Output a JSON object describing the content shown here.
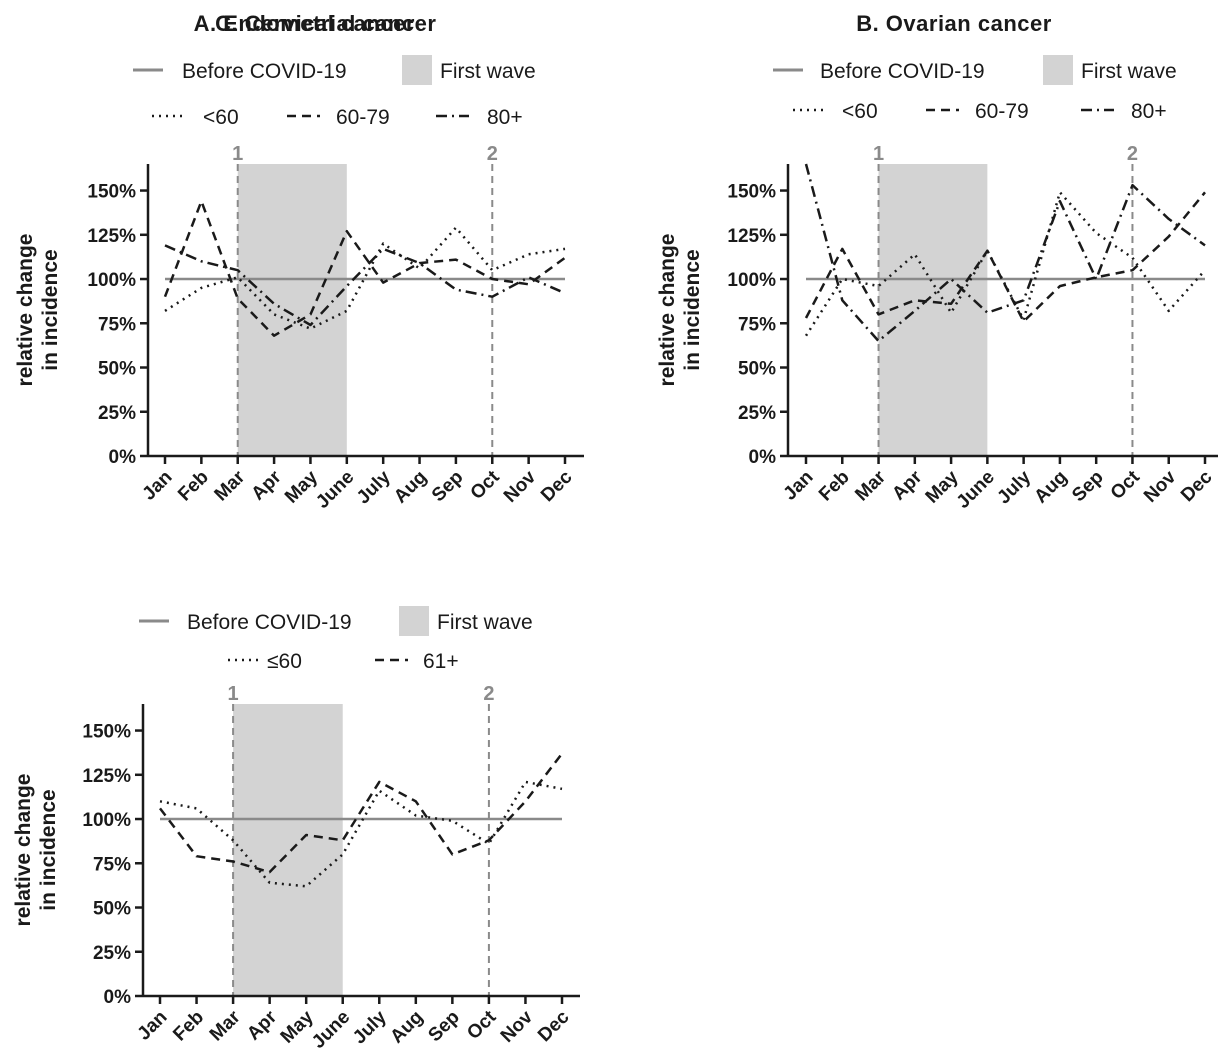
{
  "colors": {
    "axis": "#1a1a1a",
    "line": "#1a1a1a",
    "reference": "#8a8a8a",
    "shade": "#d3d3d3",
    "marker": "#8a8a8a"
  },
  "chart_data": [
    {
      "type": "line",
      "title": "A. Endometrial cancer",
      "ylabel": [
        "relative change",
        "in incidence"
      ],
      "categories": [
        "Jan",
        "Feb",
        "Mar",
        "Apr",
        "May",
        "June",
        "July",
        "Aug",
        "Sep",
        "Oct",
        "Nov",
        "Dec"
      ],
      "y_ticks": [
        "0%",
        "25%",
        "50%",
        "75%",
        "100%",
        "125%",
        "150%"
      ],
      "ylim": [
        0,
        165
      ],
      "reference": {
        "name": "Before COVID-19",
        "value": 100
      },
      "shaded": {
        "name": "First wave",
        "from": "Mar",
        "to": "June"
      },
      "markers": [
        {
          "label": "1",
          "at": "Mar"
        },
        {
          "label": "2",
          "at": "Oct"
        }
      ],
      "series": [
        {
          "name": "<60",
          "style": "dotted",
          "values": [
            82,
            95,
            101,
            80,
            72,
            82,
            120,
            106,
            129,
            105,
            114,
            117
          ]
        },
        {
          "name": "60-79",
          "style": "dashed",
          "values": [
            90,
            144,
            89,
            68,
            80,
            127,
            98,
            109,
            111,
            100,
            97,
            112
          ]
        },
        {
          "name": "80+",
          "style": "dashdot",
          "values": [
            119,
            110,
            105,
            86,
            74,
            96,
            117,
            109,
            94,
            90,
            101,
            92
          ]
        }
      ]
    },
    {
      "type": "line",
      "title": "B. Ovarian cancer",
      "ylabel": [
        "relative change",
        "in incidence"
      ],
      "categories": [
        "Jan",
        "Feb",
        "Mar",
        "Apr",
        "May",
        "June",
        "July",
        "Aug",
        "Sep",
        "Oct",
        "Nov",
        "Dec"
      ],
      "y_ticks": [
        "0%",
        "25%",
        "50%",
        "75%",
        "100%",
        "125%",
        "150%"
      ],
      "ylim": [
        0,
        165
      ],
      "reference": {
        "name": "Before COVID-19",
        "value": 100
      },
      "shaded": {
        "name": "First wave",
        "from": "Mar",
        "to": "June"
      },
      "markers": [
        {
          "label": "1",
          "at": "Mar"
        },
        {
          "label": "2",
          "at": "Oct"
        }
      ],
      "series": [
        {
          "name": "<60",
          "style": "dotted",
          "values": [
            68,
            100,
            96,
            114,
            81,
            116,
            77,
            149,
            126,
            112,
            82,
            105
          ]
        },
        {
          "name": "60-79",
          "style": "dashed",
          "values": [
            78,
            117,
            80,
            88,
            86,
            116,
            76,
            96,
            101,
            105,
            124,
            149
          ]
        },
        {
          "name": "80+",
          "style": "dashdot",
          "values": [
            165,
            88,
            65,
            82,
            100,
            81,
            88,
            144,
            100,
            153,
            134,
            119
          ]
        }
      ]
    },
    {
      "type": "line",
      "title": "C. Cervical cancer",
      "ylabel": [
        "relative change",
        "in incidence"
      ],
      "categories": [
        "Jan",
        "Feb",
        "Mar",
        "Apr",
        "May",
        "June",
        "July",
        "Aug",
        "Sep",
        "Oct",
        "Nov",
        "Dec"
      ],
      "y_ticks": [
        "0%",
        "25%",
        "50%",
        "75%",
        "100%",
        "125%",
        "150%"
      ],
      "ylim": [
        0,
        165
      ],
      "reference": {
        "name": "Before COVID-19",
        "value": 100
      },
      "shaded": {
        "name": "First wave",
        "from": "Mar",
        "to": "June"
      },
      "markers": [
        {
          "label": "1",
          "at": "Mar"
        },
        {
          "label": "2",
          "at": "Oct"
        }
      ],
      "series": [
        {
          "name": "≤60",
          "style": "dotted",
          "values": [
            110,
            106,
            88,
            64,
            62,
            80,
            116,
            102,
            99,
            86,
            121,
            117
          ]
        },
        {
          "name": "61+",
          "style": "dashed",
          "values": [
            106,
            79,
            76,
            70,
            91,
            88,
            121,
            110,
            80,
            88,
            110,
            137
          ]
        }
      ]
    }
  ]
}
